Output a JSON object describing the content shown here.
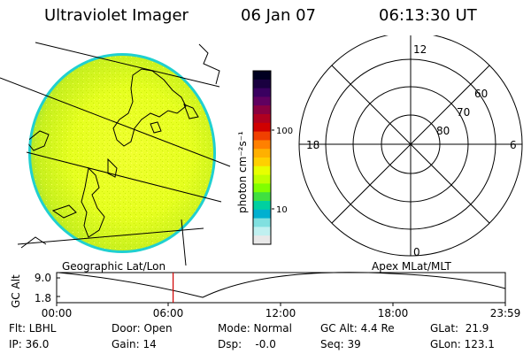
{
  "header": {
    "title": "Ultraviolet Imager",
    "date": "06 Jan 07",
    "time": "06:13:30 UT"
  },
  "geo_panel": {
    "label": "Geographic Lat/Lon"
  },
  "colorbar": {
    "unit_label": "photon cm⁻²s⁻¹",
    "ticks": [
      "100",
      "10"
    ],
    "colors": [
      "#000020",
      "#1a0040",
      "#3a0060",
      "#600060",
      "#8a0040",
      "#b00020",
      "#d00000",
      "#f04000",
      "#ff8000",
      "#ffb000",
      "#ffd000",
      "#e8ff00",
      "#c0ff00",
      "#80ff00",
      "#40e040",
      "#00d0a0",
      "#00b0d0",
      "#80e0e0",
      "#c0f0f0",
      "#e8e8e8"
    ]
  },
  "polar_panel": {
    "label": "Apex MLat/MLT",
    "mlt_labels": {
      "top": "12",
      "left": "18",
      "right": "6",
      "bottom": "0"
    },
    "lat_labels": [
      "60",
      "70",
      "80"
    ]
  },
  "altitude_plot": {
    "y_axis_label": "GC Alt",
    "y_ticks": [
      "9.0",
      "1.8"
    ],
    "x_ticks": [
      "00:00",
      "06:00",
      "12:00",
      "18:00",
      "23:59"
    ],
    "marker_color": "#d00000",
    "marker_time_hours": 6.225
  },
  "status": {
    "flt": "Flt: LBHL",
    "ip": "IP: 36.0",
    "door": "Door: Open",
    "gain": "Gain: 14",
    "mode": "Mode: Normal",
    "dsp": "Dsp:    -0.0",
    "gc_alt": "GC Alt: 4.4 Re",
    "seq": "Seq: 39",
    "glat": "GLat:  21.9",
    "glon": "GLon: 123.1"
  }
}
